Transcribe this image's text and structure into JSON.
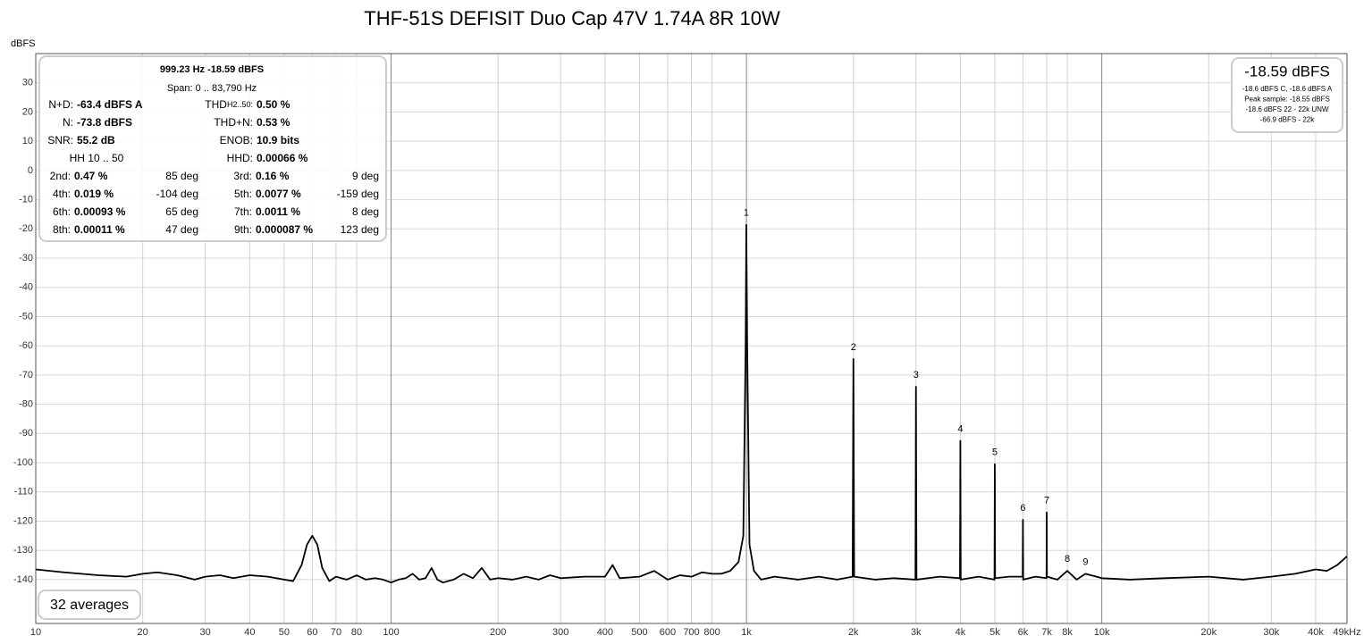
{
  "chart_data": {
    "type": "line",
    "title": "THF-51S DEFISIT Duo Cap 47V 1.74A 8R 10W",
    "y_label": "dBFS",
    "xscale": "log",
    "color": "#000000",
    "grid": true,
    "xlim": [
      10,
      49000
    ],
    "ylim": [
      -155,
      40
    ],
    "yticks": [
      30,
      20,
      10,
      0,
      -10,
      -20,
      -30,
      -40,
      -50,
      -60,
      -70,
      -80,
      -90,
      -100,
      -110,
      -120,
      -130,
      -140
    ],
    "xticks": [
      10,
      20,
      30,
      40,
      50,
      60,
      70,
      80,
      100,
      200,
      300,
      400,
      500,
      600,
      700,
      800,
      {
        "value": 1000,
        "label": "1k"
      },
      {
        "value": 2000,
        "label": "2k"
      },
      {
        "value": 3000,
        "label": "3k"
      },
      {
        "value": 4000,
        "label": "4k"
      },
      {
        "value": 5000,
        "label": "5k"
      },
      {
        "value": 6000,
        "label": "6k"
      },
      {
        "value": 7000,
        "label": "7k"
      },
      {
        "value": 8000,
        "label": "8k"
      },
      {
        "value": 10000,
        "label": "10k"
      },
      {
        "value": 20000,
        "label": "20k"
      },
      {
        "value": 30000,
        "label": "30k"
      },
      {
        "value": 40000,
        "label": "40k"
      },
      {
        "value": 49000,
        "label": "49kHz"
      }
    ],
    "x": [
      10,
      12,
      15,
      18,
      20,
      22,
      25,
      28,
      30,
      33,
      36,
      40,
      45,
      50,
      53,
      56,
      58,
      60,
      62,
      64,
      67,
      70,
      75,
      80,
      85,
      90,
      95,
      100,
      105,
      110,
      115,
      120,
      125,
      130,
      135,
      140,
      150,
      160,
      170,
      180,
      190,
      200,
      220,
      240,
      260,
      280,
      300,
      350,
      400,
      420,
      440,
      500,
      550,
      600,
      650,
      700,
      750,
      800,
      850,
      900,
      950,
      980,
      995,
      999.23,
      1005,
      1020,
      1050,
      1100,
      1200,
      1400,
      1600,
      1800,
      1990,
      2000,
      2010,
      2300,
      2600,
      2990,
      3000,
      3010,
      3500,
      3990,
      4000,
      4010,
      4500,
      4990,
      5000,
      5010,
      5500,
      5990,
      6000,
      6010,
      6500,
      6990,
      7000,
      7010,
      7500,
      8000,
      8500,
      9000,
      10000,
      12000,
      15000,
      20000,
      25000,
      30000,
      35000,
      40000,
      43000,
      46000,
      48000,
      49000
    ],
    "values": [
      -136.5,
      -137.5,
      -138.5,
      -139,
      -138,
      -137.5,
      -138.5,
      -140,
      -139,
      -138.5,
      -139.5,
      -138.5,
      -139,
      -140,
      -140.5,
      -135,
      -128,
      -125,
      -128,
      -136,
      -140.5,
      -139,
      -140,
      -138.5,
      -140,
      -139.5,
      -140,
      -141,
      -140,
      -139.5,
      -138,
      -140,
      -139.5,
      -136,
      -140,
      -141,
      -140,
      -138,
      -139.5,
      -136,
      -140,
      -139.5,
      -140,
      -139,
      -140,
      -138.5,
      -139.5,
      -139,
      -139,
      -135,
      -139.5,
      -139,
      -137,
      -140,
      -138.5,
      -139,
      -137.5,
      -138,
      -138,
      -137,
      -134,
      -125,
      -60,
      -18.59,
      -60,
      -128,
      -137,
      -140,
      -139,
      -140,
      -139,
      -140,
      -139,
      -64.5,
      -139,
      -140,
      -139.5,
      -140,
      -74,
      -140,
      -139,
      -139.5,
      -92.5,
      -140,
      -139,
      -140,
      -100.5,
      -139.5,
      -139,
      -139,
      -119.5,
      -140,
      -139,
      -139.5,
      -117,
      -139,
      -140,
      -137,
      -140,
      -138,
      -139.5,
      -140,
      -139.5,
      -139,
      -140,
      -139,
      -138,
      -136.5,
      -137,
      -135,
      -133,
      -132
    ],
    "annotations": [
      {
        "text": "1",
        "x": 999.23,
        "y": -18.59
      },
      {
        "text": "2",
        "x": 2000,
        "y": -64.5
      },
      {
        "text": "3",
        "x": 3000,
        "y": -74
      },
      {
        "text": "4",
        "x": 4000,
        "y": -92.5
      },
      {
        "text": "5",
        "x": 5000,
        "y": -100.5
      },
      {
        "text": "6",
        "x": 6000,
        "y": -119.5
      },
      {
        "text": "7",
        "x": 7000,
        "y": -117
      },
      {
        "text": "8",
        "x": 8000,
        "y": -137
      },
      {
        "text": "9",
        "x": 9000,
        "y": -138
      }
    ],
    "info_panel": {
      "header": "999.23 Hz  -18.59 dBFS",
      "span": "Span: 0 .. 83,790 Hz",
      "thd_label": "THD",
      "thd_sub": "H2..50:",
      "stats": [
        [
          "N+D:",
          "-63.4 dBFS A",
          "0.50 %"
        ],
        [
          "N:",
          "-73.8 dBFS",
          "THD+N:",
          "0.53 %"
        ],
        [
          "SNR:",
          "55.2 dB",
          "ENOB:",
          "10.9 bits"
        ]
      ],
      "hh_label": "HH 10 .. 50",
      "hhd": [
        "HHD:",
        "0.00066 %"
      ],
      "harmonics": [
        [
          "2nd:",
          "0.47 %",
          "85 deg",
          "3rd:",
          "0.16 %",
          "9 deg"
        ],
        [
          "4th:",
          "0.019 %",
          "-104 deg",
          "5th:",
          "0.0077 %",
          "-159 deg"
        ],
        [
          "6th:",
          "0.00093 %",
          "65 deg",
          "7th:",
          "0.0011 %",
          "8 deg"
        ],
        [
          "8th:",
          "0.00011 %",
          "47 deg",
          "9th:",
          "0.000087 %",
          "123 deg"
        ]
      ]
    },
    "level_panel": {
      "level": "-18.59 dBFS",
      "lines": [
        "-18.6 dBFS C, -18.6 dBFS A",
        "Peak sample: -18.55 dBFS",
        "-18.6 dBFS 22 - 22k UNW",
        "-66.9 dBFS - 22k"
      ]
    },
    "averages": "32 averages"
  }
}
